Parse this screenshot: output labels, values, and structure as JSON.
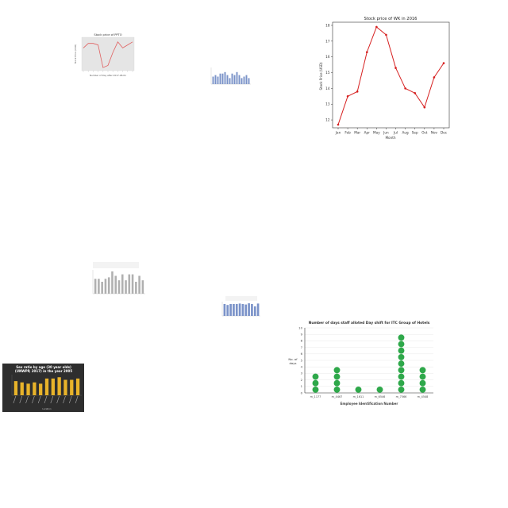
{
  "charts": {
    "stock_small": {
      "type": "line",
      "title": "Stock price of PPTO",
      "xlabel": "Number of Day after 2017-08-01",
      "ylabel": "Stock Price (USD)",
      "color": "#e06060",
      "x": [
        0,
        1,
        2,
        3,
        4,
        5,
        6,
        7,
        8,
        9,
        10
      ],
      "values": [
        0.7,
        0.85,
        0.85,
        0.8,
        0.05,
        0.12,
        0.55,
        0.9,
        0.7,
        0.8,
        0.9
      ],
      "ylim": [
        0,
        1
      ]
    },
    "bars_blue_top": {
      "type": "bar",
      "color": "#7b93c9",
      "values": [
        5,
        6,
        5,
        7,
        7,
        8,
        6,
        4,
        7,
        6,
        8,
        6,
        4,
        5,
        6,
        4
      ],
      "ylim": [
        0,
        10
      ]
    },
    "stock_wk": {
      "type": "line",
      "title": "Stock price of WK in 2016",
      "xlabel": "Month",
      "ylabel": "Stock Price (USD)",
      "color": "#d62020",
      "categories": [
        "Jan",
        "Feb",
        "Mar",
        "Apr",
        "May",
        "Jun",
        "Jul",
        "Aug",
        "Sep",
        "Oct",
        "Nov",
        "Dec"
      ],
      "values": [
        11.7,
        13.5,
        13.8,
        16.3,
        17.9,
        17.4,
        15.3,
        14.0,
        13.7,
        12.8,
        14.7,
        15.6
      ],
      "ylim": [
        11.5,
        18.2
      ],
      "yticks": [
        12,
        13,
        14,
        15,
        16,
        17,
        18
      ]
    },
    "bars_gray": {
      "type": "bar",
      "color": "#b0b0b0",
      "values": [
        10,
        10,
        8,
        10,
        11,
        15,
        12,
        9,
        13,
        9,
        13,
        13,
        8,
        12,
        9
      ],
      "ylim": [
        0,
        16
      ]
    },
    "bars_blue_mid": {
      "type": "bar",
      "color": "#7b93c9",
      "values": [
        5,
        4.6,
        5,
        5,
        5,
        5.2,
        5,
        4.8,
        5.3,
        5,
        4,
        5.2
      ],
      "ylim": [
        0,
        6
      ]
    },
    "sex_ratio": {
      "type": "bar",
      "title_line1": "Sex ratio by age (30 year olds)",
      "title_line2": "(UNWPP, 2017) in the year 2005",
      "xlabel": "Location",
      "color": "#e8b32a",
      "background": "#2e2e2e",
      "values": [
        101,
        100,
        99,
        100,
        99,
        103,
        103,
        104,
        102,
        102,
        103
      ],
      "ylim": [
        90,
        106
      ]
    },
    "days_staff": {
      "type": "scatter",
      "title": "Number of days staff alloted Day shift for ITC Group of Hotels",
      "xlabel": "Employee Identification Number",
      "ylabel_line1": "No. of",
      "ylabel_line2": "days",
      "color": "#2ea84a",
      "categories": [
        "m_1177",
        "m_4467",
        "m_1611",
        "m_6546",
        "m_7566",
        "m_4548"
      ],
      "values": [
        3,
        4,
        1,
        1,
        9,
        4
      ],
      "ylim": [
        0,
        10
      ],
      "yticks": [
        0,
        1,
        2,
        3,
        4,
        5,
        6,
        7,
        8,
        9,
        10
      ]
    }
  }
}
